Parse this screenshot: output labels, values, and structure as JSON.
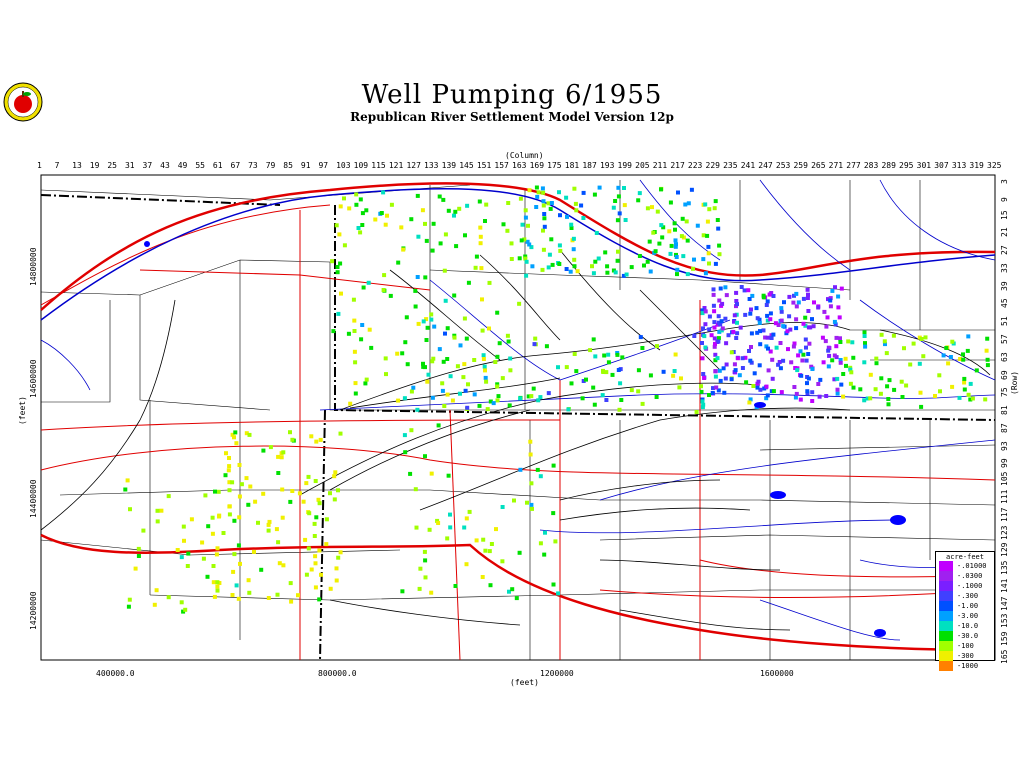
{
  "title": "Well Pumping   6/1955",
  "subtitle": "Republican River Settlement Model Version 12p",
  "top_axis_label": "(Column)",
  "bottom_axis_label": "(feet)",
  "left_axis_label": "(feet)",
  "right_axis_label": "(Row)",
  "column_ticks": [
    "1",
    "7",
    "13",
    "19",
    "25",
    "31",
    "37",
    "43",
    "49",
    "55",
    "61",
    "67",
    "73",
    "79",
    "85",
    "91",
    "97",
    "103",
    "109",
    "115",
    "121",
    "127",
    "133",
    "139",
    "145",
    "151",
    "157",
    "163",
    "169",
    "175",
    "181",
    "187",
    "193",
    "199",
    "205",
    "211",
    "217",
    "223",
    "229",
    "235",
    "241",
    "247",
    "253",
    "259",
    "265",
    "271",
    "277",
    "283",
    "289",
    "295",
    "301",
    "307",
    "313",
    "319",
    "325"
  ],
  "row_ticks": [
    "3",
    "9",
    "15",
    "21",
    "27",
    "33",
    "39",
    "45",
    "51",
    "57",
    "63",
    "69",
    "75",
    "81",
    "87",
    "93",
    "99",
    "105",
    "111",
    "117",
    "123",
    "129",
    "135",
    "141",
    "147",
    "153",
    "159",
    "165"
  ],
  "x_ticks": [
    "400000.0",
    "800000.0",
    "1200000",
    "1600000"
  ],
  "y_ticks": [
    "14800000",
    "14600000",
    "14400000",
    "14200000"
  ],
  "legend": {
    "title": "acre-feet",
    "items": [
      {
        "label": "-.01000",
        "color": "#c000ff"
      },
      {
        "label": "-.0300",
        "color": "#a020f0"
      },
      {
        "label": "-.1000",
        "color": "#7a1fff"
      },
      {
        "label": "-.300",
        "color": "#4040ff"
      },
      {
        "label": "-1.00",
        "color": "#0050ff"
      },
      {
        "label": "-3.00",
        "color": "#00a0ff"
      },
      {
        "label": "-10.0",
        "color": "#00e0c0"
      },
      {
        "label": "-30.0",
        "color": "#00e000"
      },
      {
        "label": "-100",
        "color": "#a0ff00"
      },
      {
        "label": "-300",
        "color": "#f0f000"
      },
      {
        "label": "-1000",
        "color": "#ff8000"
      }
    ]
  },
  "colors": {
    "river": "#0000cc",
    "road": "#e00000",
    "county_line": "#000000",
    "background": "#ffffff"
  },
  "icon": "apple-logo-icon"
}
